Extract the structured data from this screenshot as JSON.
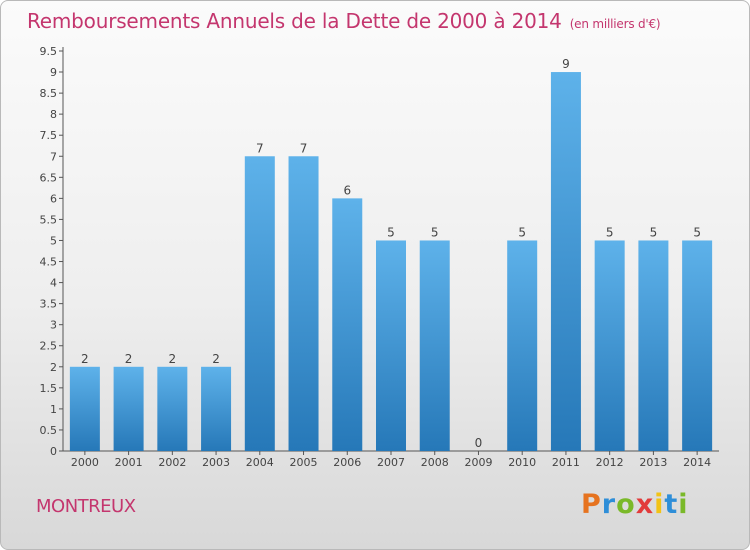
{
  "title": "Remboursements Annuels de la Dette de 2000 à 2014",
  "unit_label": "(en milliers d'€)",
  "commune": "MONTREUX",
  "brand": {
    "letters": [
      "P",
      "r",
      "o",
      "x",
      "i",
      "t",
      "i"
    ],
    "colors": [
      "#e6731f",
      "#2e8ed8",
      "#7ab929",
      "#e23b3b",
      "#f2c316",
      "#2e8ed8",
      "#7ab929"
    ]
  },
  "colors": {
    "bar_light": "#5eb2ea",
    "bar_dark": "#2678b8",
    "title": "#c4366e"
  },
  "chart_data": {
    "type": "bar",
    "title": "Remboursements Annuels de la Dette de 2000 à 2014",
    "categories": [
      "2000",
      "2001",
      "2002",
      "2003",
      "2004",
      "2005",
      "2006",
      "2007",
      "2008",
      "2009",
      "2010",
      "2011",
      "2012",
      "2013",
      "2014"
    ],
    "values": [
      2,
      2,
      2,
      2,
      7,
      7,
      6,
      5,
      5,
      0,
      5,
      9,
      5,
      5,
      5
    ],
    "y_ticks": [
      "0",
      "0.5",
      "1",
      "1.5",
      "2",
      "2.5",
      "3",
      "3.5",
      "4",
      "4.5",
      "5",
      "5.5",
      "6",
      "6.5",
      "7",
      "7.5",
      "8",
      "8.5",
      "9",
      "9.5"
    ],
    "ylim": [
      0,
      9.5
    ],
    "grid": false
  }
}
